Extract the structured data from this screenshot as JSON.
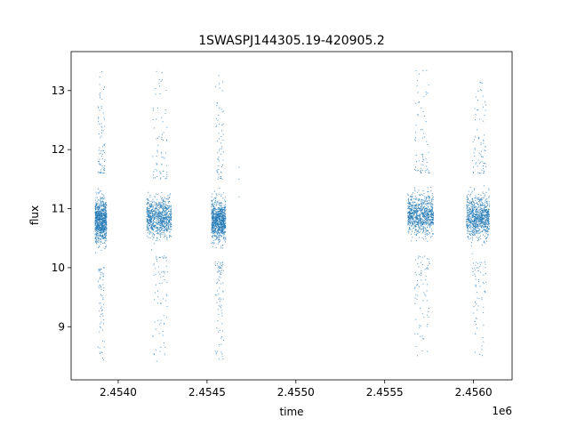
{
  "chart_data": {
    "type": "scatter",
    "title": "1SWASPJ144305.19-420905.2",
    "xlabel": "time",
    "ylabel": "flux",
    "x_offset_label": "1e6",
    "xlim": [
      2453735,
      2456217
    ],
    "ylim": [
      8.1,
      13.66
    ],
    "x_ticks": [
      2454000,
      2454500,
      2455000,
      2455500,
      2456000
    ],
    "x_tick_labels": [
      "2.4540",
      "2.4545",
      "2.4550",
      "2.4555",
      "2.4560"
    ],
    "y_ticks": [
      9,
      10,
      11,
      12,
      13
    ],
    "y_tick_labels": [
      "9",
      "10",
      "11",
      "12",
      "13"
    ],
    "grid": false,
    "marker_color": "#1f77b4",
    "observing_seasons": [
      {
        "x_start": 2453870,
        "x_end": 2453935,
        "flux_mean": 10.85,
        "flux_core_min": 10.0,
        "flux_core_max": 11.6,
        "flux_min": 8.4,
        "flux_max": 13.4
      },
      {
        "x_start": 2454160,
        "x_end": 2454300,
        "flux_mean": 10.85,
        "flux_core_min": 10.2,
        "flux_core_max": 11.5,
        "flux_min": 8.4,
        "flux_max": 13.35
      },
      {
        "x_start": 2454525,
        "x_end": 2454605,
        "flux_mean": 10.9,
        "flux_core_min": 10.1,
        "flux_core_max": 11.5,
        "flux_min": 8.45,
        "flux_max": 13.3
      },
      {
        "x_start": 2455630,
        "x_end": 2455775,
        "flux_mean": 10.85,
        "flux_core_min": 10.2,
        "flux_core_max": 11.6,
        "flux_min": 8.45,
        "flux_max": 13.35
      },
      {
        "x_start": 2455960,
        "x_end": 2456090,
        "flux_mean": 10.85,
        "flux_core_min": 10.1,
        "flux_core_max": 11.6,
        "flux_min": 8.5,
        "flux_max": 13.15
      }
    ],
    "isolated_points": [
      {
        "x": 2454680,
        "y": 11.7
      },
      {
        "x": 2454680,
        "y": 11.5
      },
      {
        "x": 2454680,
        "y": 11.2
      }
    ]
  }
}
